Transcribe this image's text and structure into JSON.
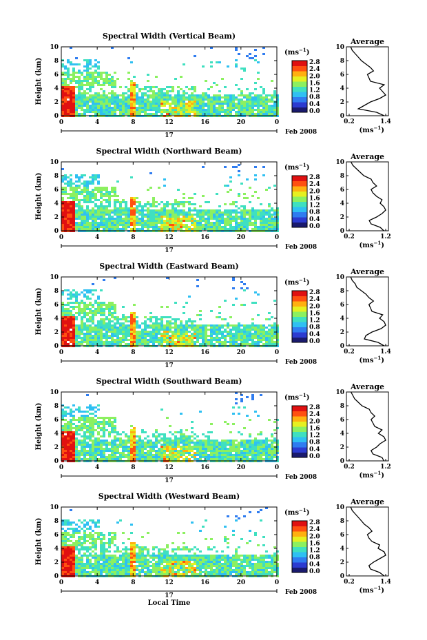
{
  "chart_data": {
    "type": "heatmap",
    "panels": [
      {
        "title": "Spectral Width (Vertical Beam)",
        "cb_ticks": [
          "0.0",
          "0.4",
          "0.8",
          "1.2",
          "1.6",
          "2.0",
          "2.4",
          "2.8"
        ],
        "avg_xticks": [
          "0.2",
          "1.4"
        ],
        "avg_profile": [
          1.35,
          1.1,
          0.5,
          0.7,
          0.9,
          1.2,
          1.4,
          1.3,
          1.2,
          1.35,
          0.9,
          0.85,
          0.8,
          1.0,
          0.9,
          0.75,
          0.6,
          0.5,
          0.4,
          0.3,
          0.25
        ]
      },
      {
        "title": "Spectral Width (Northward Beam)",
        "cb_ticks": [
          "0.0",
          "0.4",
          "0.8",
          "1.2",
          "1.6",
          "2.0",
          "2.4",
          "2.8"
        ],
        "avg_xticks": [
          "0.2",
          "1.2"
        ],
        "avg_profile": [
          1.15,
          1.05,
          0.8,
          0.75,
          0.95,
          1.1,
          1.2,
          1.15,
          1.05,
          1.1,
          0.95,
          0.85,
          0.8,
          0.95,
          0.85,
          0.8,
          0.6,
          0.5,
          0.4,
          0.3,
          0.25
        ]
      },
      {
        "title": "Spectral Width (Eastward Beam)",
        "cb_ticks": [
          "0.0",
          "0.4",
          "0.8",
          "1.2",
          "1.6",
          "2.0",
          "2.4",
          "2.8"
        ],
        "avg_xticks": [
          "0.2",
          "1.4"
        ],
        "avg_profile": [
          1.35,
          1.15,
          0.7,
          0.75,
          0.95,
          1.25,
          1.4,
          1.35,
          1.2,
          1.3,
          0.95,
          0.9,
          0.85,
          1.0,
          0.85,
          0.75,
          0.6,
          0.45,
          0.4,
          0.3,
          0.25
        ]
      },
      {
        "title": "Spectral Width (Southward Beam)",
        "cb_ticks": [
          "0.0",
          "0.4",
          "0.8",
          "1.2",
          "1.6",
          "2.0",
          "2.4",
          "2.8"
        ],
        "avg_xticks": [
          "0.2",
          "1.2"
        ],
        "avg_profile": [
          1.15,
          1.1,
          0.85,
          0.8,
          0.95,
          1.05,
          1.2,
          1.15,
          1.0,
          1.1,
          0.9,
          0.85,
          0.8,
          0.9,
          0.8,
          0.75,
          0.55,
          0.45,
          0.35,
          0.3,
          0.25
        ]
      },
      {
        "title": "Spectral Width (Westward Beam)",
        "cb_ticks": [
          "0.0",
          "0.4",
          "0.8",
          "1.2",
          "1.6",
          "2.0",
          "2.4",
          "2.8"
        ],
        "avg_xticks": [
          "0.2",
          "1.4"
        ],
        "avg_profile": [
          1.35,
          1.2,
          0.9,
          0.85,
          1.0,
          1.2,
          1.4,
          1.35,
          1.15,
          1.2,
          0.95,
          0.85,
          0.8,
          0.95,
          0.85,
          0.7,
          0.6,
          0.5,
          0.4,
          0.3,
          0.25
        ]
      }
    ],
    "x_ticks": [
      "0",
      "4",
      "8",
      "12",
      "16",
      "20",
      "0"
    ],
    "x_range": [
      0,
      24
    ],
    "y_ticks": [
      "0",
      "2",
      "4",
      "6",
      "8",
      "10"
    ],
    "y_range": [
      0,
      10
    ],
    "ylabel": "Height (km)",
    "day_label": "17",
    "month_label": "Feb 2008",
    "xlabel": "Local Time",
    "unit_label": "(ms",
    "unit_exp": "−1",
    "avg_title": "Average",
    "avg_profile_heights": [
      0,
      0.5,
      1,
      1.5,
      2,
      2.5,
      3,
      3.5,
      4,
      4.5,
      5,
      5.5,
      6,
      6.5,
      7,
      7.5,
      8,
      8.5,
      9,
      9.5,
      10
    ],
    "colorscale": [
      "#1a1a6e",
      "#2c3bd0",
      "#2f7cf0",
      "#2fc0f2",
      "#3fe0c0",
      "#8cf060",
      "#e6f020",
      "#ffb010",
      "#ff5010",
      "#e01010"
    ]
  }
}
